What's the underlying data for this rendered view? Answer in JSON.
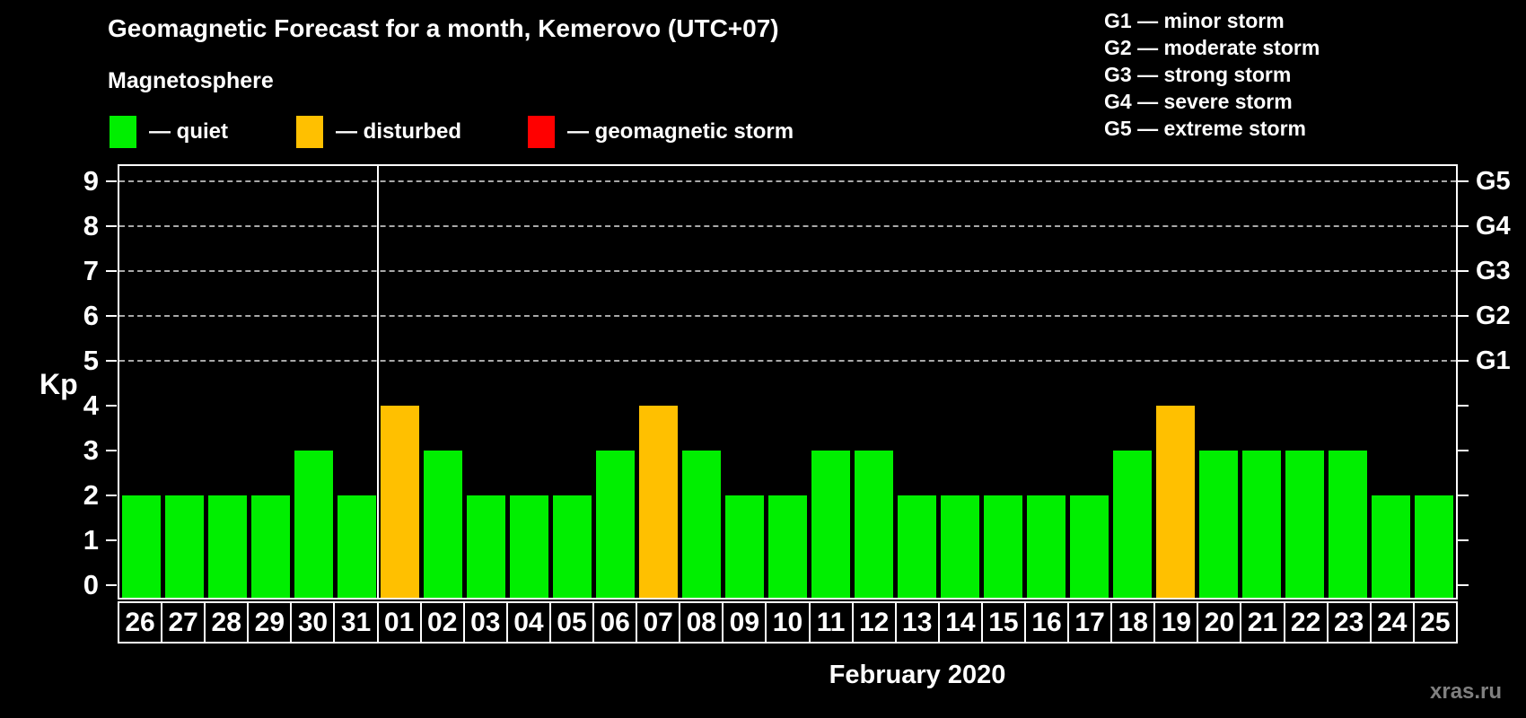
{
  "title": "Geomagnetic Forecast for a month, Kemerovo (UTC+07)",
  "legend": {
    "title": "Magnetosphere",
    "items": [
      {
        "key": "quiet",
        "label": "— quiet",
        "color": "#00ef00"
      },
      {
        "key": "disturbed",
        "label": "— disturbed",
        "color": "#ffc000"
      },
      {
        "key": "storm",
        "label": "— geomagnetic storm",
        "color": "#ff0000"
      }
    ]
  },
  "g_legend": [
    "G1 — minor storm",
    "G2 — moderate storm",
    "G3 — strong storm",
    "G4 — severe storm",
    "G5 — extreme storm"
  ],
  "axis": {
    "kp_label": "Kp",
    "left_ticks": [
      "0",
      "1",
      "2",
      "3",
      "4",
      "5",
      "6",
      "7",
      "8",
      "9"
    ],
    "right_labels": [
      {
        "kp": 5,
        "label": "G1"
      },
      {
        "kp": 6,
        "label": "G2"
      },
      {
        "kp": 7,
        "label": "G3"
      },
      {
        "kp": 8,
        "label": "G4"
      },
      {
        "kp": 9,
        "label": "G5"
      }
    ]
  },
  "footer": {
    "month_label": "February 2020",
    "watermark": "xras.ru"
  },
  "chart_data": {
    "type": "bar",
    "title": "Geomagnetic Forecast for a month, Kemerovo (UTC+07)",
    "xlabel": "February 2020",
    "ylabel": "Kp",
    "ylim": [
      0,
      9
    ],
    "gridlines": [
      5,
      6,
      7,
      8,
      9
    ],
    "legend_position": "top-left",
    "categories": [
      "26",
      "27",
      "28",
      "29",
      "30",
      "31",
      "01",
      "02",
      "03",
      "04",
      "05",
      "06",
      "07",
      "08",
      "09",
      "10",
      "11",
      "12",
      "13",
      "14",
      "15",
      "16",
      "17",
      "18",
      "19",
      "20",
      "21",
      "22",
      "23",
      "24",
      "25"
    ],
    "values": [
      2,
      2,
      2,
      2,
      3,
      2,
      4,
      3,
      2,
      2,
      2,
      3,
      4,
      3,
      2,
      2,
      3,
      3,
      2,
      2,
      2,
      2,
      2,
      3,
      4,
      3,
      3,
      3,
      3,
      2,
      2
    ],
    "statuses": [
      "quiet",
      "quiet",
      "quiet",
      "quiet",
      "quiet",
      "quiet",
      "disturbed",
      "quiet",
      "quiet",
      "quiet",
      "quiet",
      "quiet",
      "disturbed",
      "quiet",
      "quiet",
      "quiet",
      "quiet",
      "quiet",
      "quiet",
      "quiet",
      "quiet",
      "quiet",
      "quiet",
      "quiet",
      "disturbed",
      "quiet",
      "quiet",
      "quiet",
      "quiet",
      "quiet",
      "quiet"
    ],
    "month_separator_after": "31"
  }
}
